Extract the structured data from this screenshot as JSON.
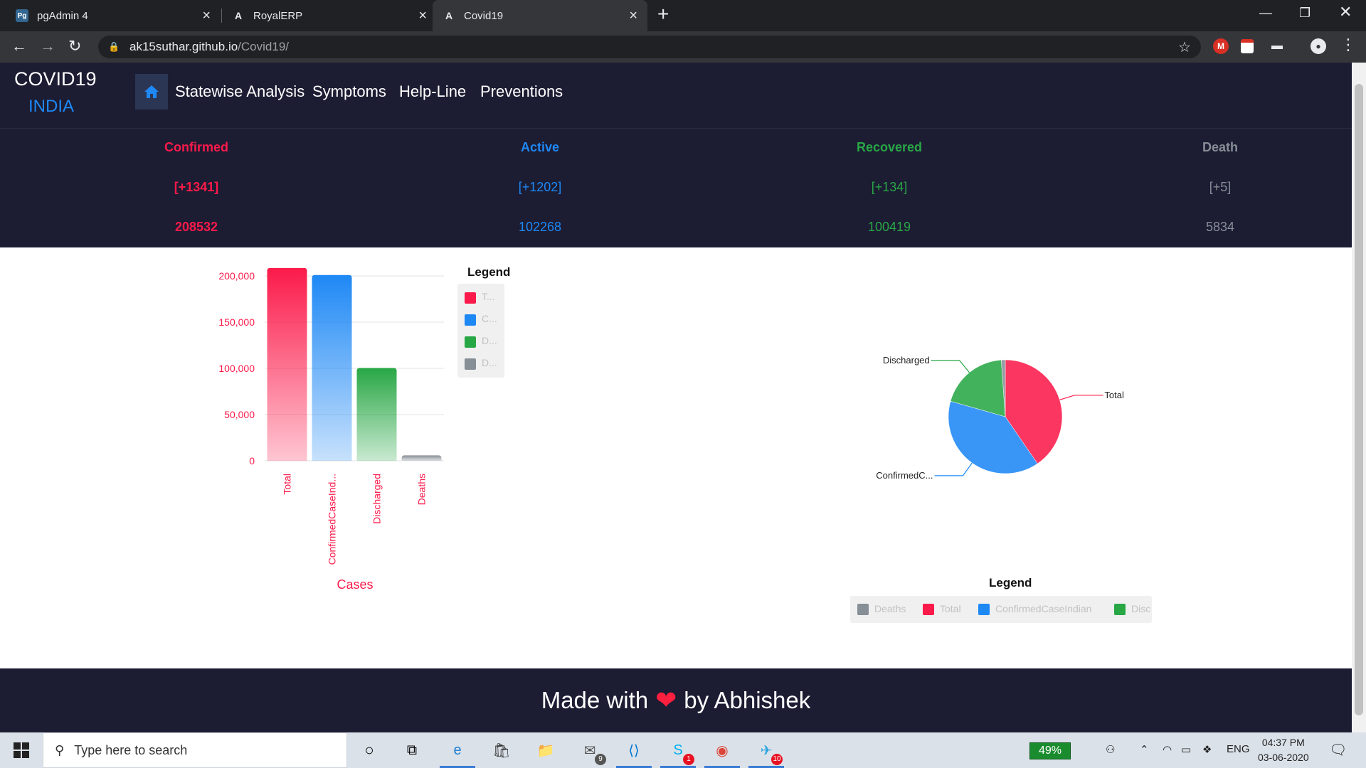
{
  "browser": {
    "tabs": [
      {
        "title": "pgAdmin 4",
        "icon": "pgadmin-icon"
      },
      {
        "title": "RoyalERP",
        "icon": "angular-icon"
      },
      {
        "title": "Covid19",
        "icon": "angular-icon"
      }
    ],
    "url_host": "ak15suthar.github.io",
    "url_path": "/Covid19/"
  },
  "site": {
    "brand_line1": "COVID19",
    "brand_line2": "INDIA",
    "nav": [
      "Statewise Analysis",
      "Symptoms",
      "Help-Line",
      "Preventions"
    ]
  },
  "stats": {
    "confirmed": {
      "label": "Confirmed",
      "delta": "[+1341]",
      "total": "208532"
    },
    "active": {
      "label": "Active",
      "delta": "[+1202]",
      "total": "102268"
    },
    "recovered": {
      "label": "Recovered",
      "delta": "[+134]",
      "total": "100419"
    },
    "death": {
      "label": "Death",
      "delta": "[+5]",
      "total": "5834"
    }
  },
  "colors": {
    "confirmed": "#fb1a4a",
    "active": "#1e88f5",
    "recovered": "#28a745",
    "death": "#868e96",
    "header_bg": "#1c1c33"
  },
  "chart_data": [
    {
      "type": "bar",
      "categories": [
        "Total",
        "ConfirmedCaseInd...",
        "Discharged",
        "Deaths"
      ],
      "values": [
        208532,
        201000,
        100419,
        5834
      ],
      "colors": [
        "#fb1a4a",
        "#1e88f5",
        "#28a745",
        "#868e96"
      ],
      "ylim": [
        0,
        200000
      ],
      "yticks": [
        "200,000",
        "150,000",
        "100,000",
        "50,000",
        "0"
      ],
      "xlabel": "Cases",
      "legend_title": "Legend",
      "legend_labels": [
        "T...",
        "C...",
        "D...",
        "D..."
      ],
      "legend_placement": "right"
    },
    {
      "type": "pie",
      "labels": [
        "Total",
        "ConfirmedC...",
        "Discharged",
        "Deaths"
      ],
      "values": [
        208532,
        201000,
        100419,
        5834
      ],
      "colors": [
        "#fb1a4a",
        "#1e88f5",
        "#28a745",
        "#868e96"
      ],
      "legend_title": "Legend",
      "legend_labels": [
        "Deaths",
        "Total",
        "ConfirmedCaseIndian",
        "Disc"
      ],
      "legend_colors": [
        "#868e96",
        "#fb1a4a",
        "#1e88f5",
        "#28a745"
      ],
      "legend_placement": "bottom"
    }
  ],
  "footer": {
    "made_with": "Made with",
    "heart": "❤",
    "by": "by Abhishek"
  },
  "taskbar": {
    "search_placeholder": "Type here to search",
    "battery": "49%",
    "lang": "ENG",
    "time": "04:37 PM",
    "date": "03-06-2020",
    "badges": {
      "mail": "9",
      "skype": "1",
      "telegram": "10"
    }
  }
}
